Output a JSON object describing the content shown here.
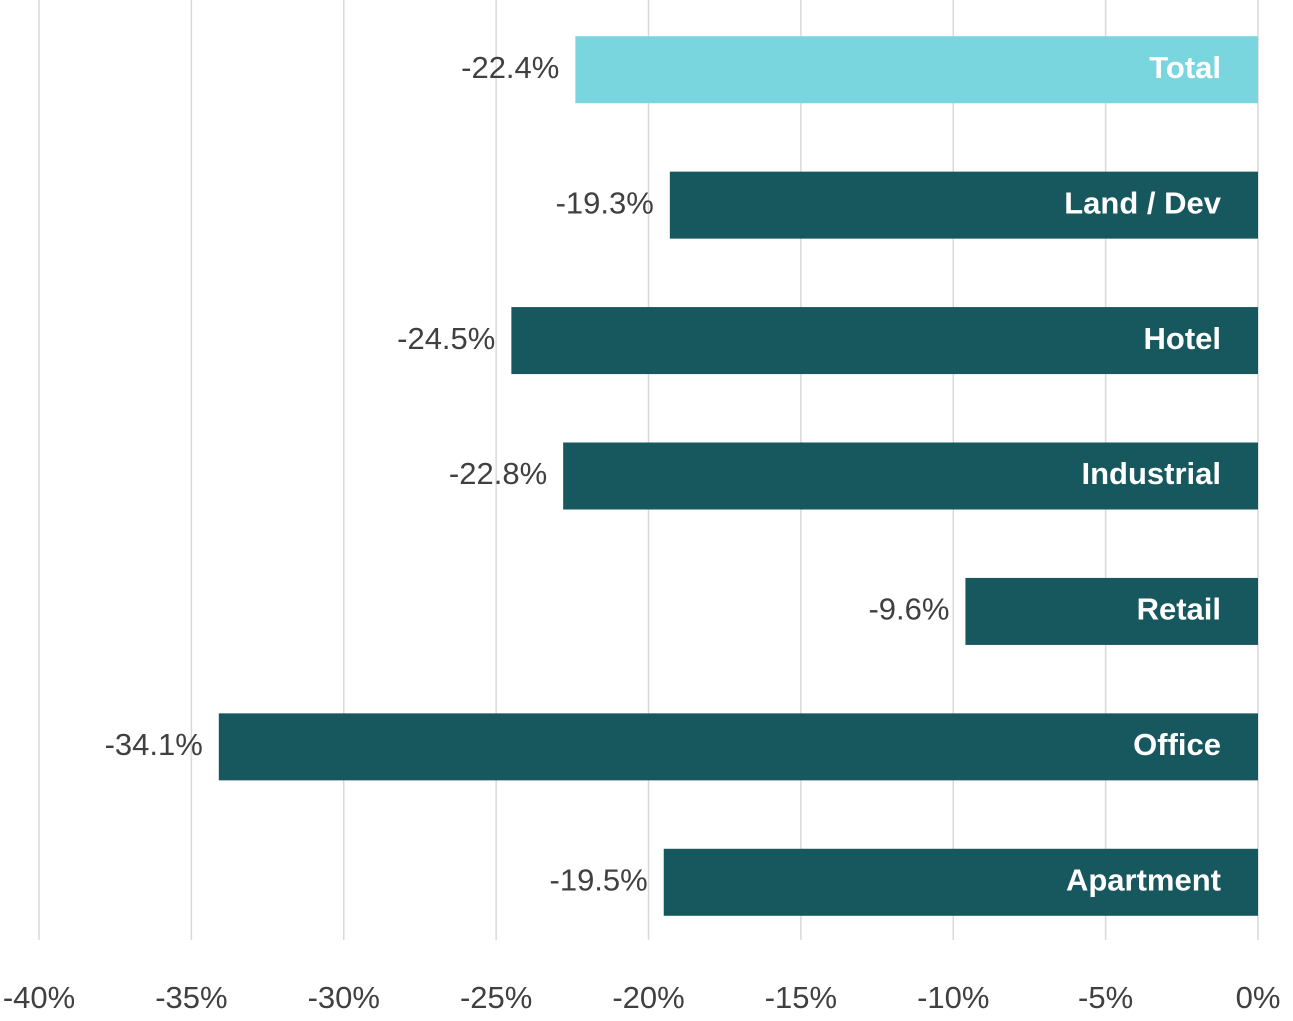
{
  "chart_data": {
    "type": "hbar",
    "categories": [
      "Total",
      "Land / Dev",
      "Hotel",
      "Industrial",
      "Retail",
      "Office",
      "Apartment"
    ],
    "values": [
      -22.4,
      -19.3,
      -24.5,
      -22.8,
      -9.6,
      -34.1,
      -19.5
    ],
    "value_labels": [
      "-22.4%",
      "-19.3%",
      "-24.5%",
      "-22.8%",
      "-9.6%",
      "-34.1%",
      "-19.5%"
    ],
    "colors": [
      "#79d6df",
      "#17575e",
      "#17575e",
      "#17575e",
      "#17575e",
      "#17575e",
      "#17575e"
    ],
    "xlim": [
      -40,
      0
    ],
    "xticks": [
      {
        "value": -40,
        "label": "-40%"
      },
      {
        "value": -35,
        "label": "-35%"
      },
      {
        "value": -30,
        "label": "-30%"
      },
      {
        "value": -25,
        "label": "-25%"
      },
      {
        "value": -20,
        "label": "-20%"
      },
      {
        "value": -15,
        "label": "-15%"
      },
      {
        "value": -10,
        "label": "-10%"
      },
      {
        "value": -5,
        "label": "-5%"
      },
      {
        "value": 0,
        "label": "0%"
      }
    ],
    "grid": true
  }
}
